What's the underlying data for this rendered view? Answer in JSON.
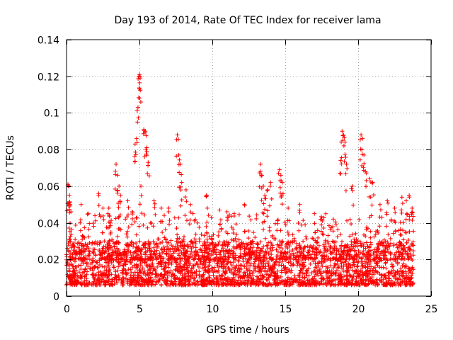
{
  "chart_data": {
    "type": "scatter",
    "title": "Day 193 of 2014, Rate Of TEC Index for receiver lama",
    "xlabel": "GPS time / hours",
    "ylabel": "ROTI / TECUs",
    "xlim": [
      0,
      25
    ],
    "ylim": [
      0,
      0.14
    ],
    "x_ticks": [
      0,
      5,
      10,
      15,
      20,
      25
    ],
    "x_tick_labels": [
      "0",
      "5",
      "10",
      "15",
      "20",
      "25"
    ],
    "y_ticks": [
      0,
      0.02,
      0.04,
      0.06,
      0.08,
      0.1,
      0.12,
      0.14
    ],
    "y_tick_labels": [
      "0",
      "0.02",
      "0.04",
      "0.06",
      "0.08",
      "0.1",
      "0.12",
      "0.14"
    ],
    "grid": true,
    "marker": "+",
    "marker_color": "#ff0000",
    "series": [
      {
        "name": "ROTI",
        "x_range": [
          0.0,
          23.8
        ],
        "baseline_range": [
          0.006,
          0.03
        ],
        "points": [
          [
            0.1,
            0.061
          ],
          [
            0.15,
            0.06
          ],
          [
            0.2,
            0.055
          ],
          [
            0.25,
            0.05
          ],
          [
            0.3,
            0.046
          ],
          [
            1.0,
            0.05
          ],
          [
            1.5,
            0.045
          ],
          [
            2.2,
            0.056
          ],
          [
            2.5,
            0.048
          ],
          [
            2.9,
            0.048
          ],
          [
            3.4,
            0.072
          ],
          [
            3.5,
            0.066
          ],
          [
            3.6,
            0.06
          ],
          [
            3.7,
            0.055
          ],
          [
            4.2,
            0.052
          ],
          [
            4.5,
            0.046
          ],
          [
            4.7,
            0.083
          ],
          [
            4.8,
            0.086
          ],
          [
            4.9,
            0.103
          ],
          [
            4.95,
            0.12
          ],
          [
            5.0,
            0.121
          ],
          [
            5.05,
            0.119
          ],
          [
            5.1,
            0.06
          ],
          [
            5.3,
            0.091
          ],
          [
            5.4,
            0.09
          ],
          [
            5.5,
            0.081
          ],
          [
            5.6,
            0.073
          ],
          [
            6.0,
            0.052
          ],
          [
            6.5,
            0.048
          ],
          [
            7.0,
            0.048
          ],
          [
            7.6,
            0.088
          ],
          [
            7.7,
            0.077
          ],
          [
            7.8,
            0.072
          ],
          [
            7.9,
            0.062
          ],
          [
            8.2,
            0.058
          ],
          [
            8.5,
            0.05
          ],
          [
            9.6,
            0.055
          ],
          [
            10.5,
            0.047
          ],
          [
            11.0,
            0.046
          ],
          [
            11.5,
            0.045
          ],
          [
            12.2,
            0.05
          ],
          [
            13.3,
            0.072
          ],
          [
            13.4,
            0.066
          ],
          [
            13.5,
            0.06
          ],
          [
            13.6,
            0.055
          ],
          [
            13.8,
            0.058
          ],
          [
            14.0,
            0.062
          ],
          [
            14.6,
            0.069
          ],
          [
            14.7,
            0.066
          ],
          [
            14.8,
            0.062
          ],
          [
            15.2,
            0.048
          ],
          [
            16.0,
            0.05
          ],
          [
            17.0,
            0.045
          ],
          [
            17.5,
            0.042
          ],
          [
            18.3,
            0.042
          ],
          [
            18.8,
            0.074
          ],
          [
            18.9,
            0.09
          ],
          [
            19.0,
            0.088
          ],
          [
            19.1,
            0.084
          ],
          [
            19.2,
            0.072
          ],
          [
            19.6,
            0.06
          ],
          [
            20.2,
            0.088
          ],
          [
            20.3,
            0.086
          ],
          [
            20.4,
            0.077
          ],
          [
            20.5,
            0.068
          ],
          [
            20.8,
            0.064
          ],
          [
            21.0,
            0.062
          ],
          [
            21.5,
            0.05
          ],
          [
            22.0,
            0.052
          ],
          [
            22.5,
            0.048
          ],
          [
            23.0,
            0.054
          ],
          [
            23.3,
            0.052
          ],
          [
            23.5,
            0.055
          ],
          [
            23.7,
            0.048
          ]
        ]
      }
    ]
  }
}
